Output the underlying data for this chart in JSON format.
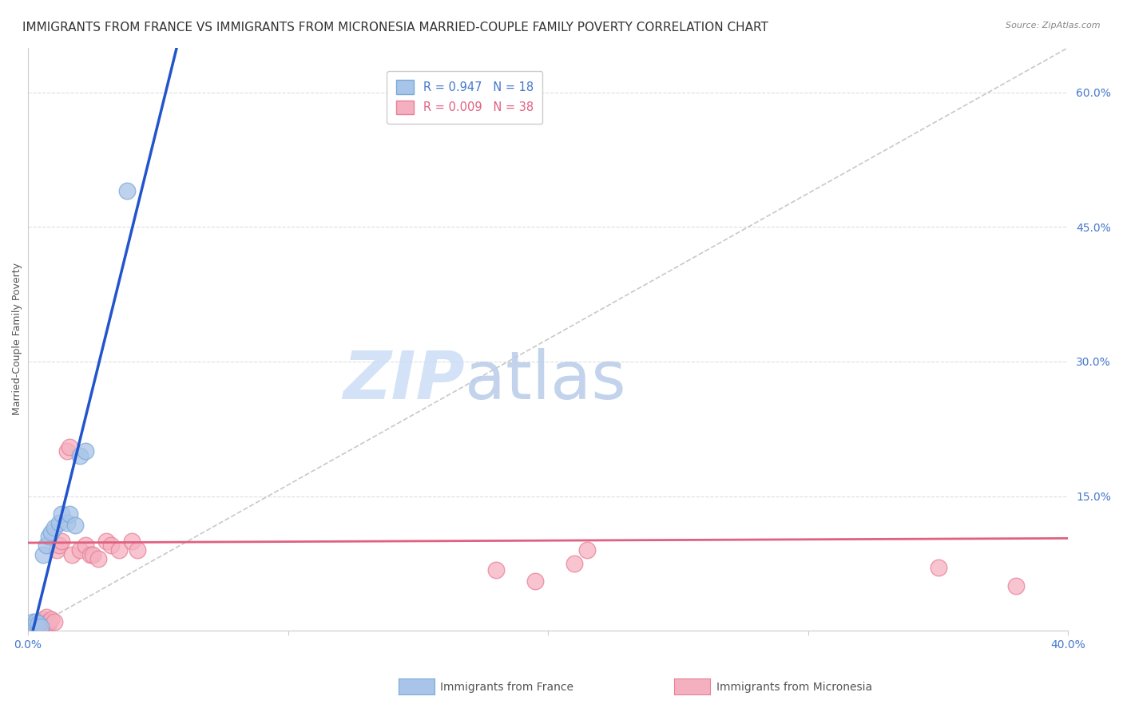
{
  "title": "IMMIGRANTS FROM FRANCE VS IMMIGRANTS FROM MICRONESIA MARRIED-COUPLE FAMILY POVERTY CORRELATION CHART",
  "source": "Source: ZipAtlas.com",
  "ylabel": "Married-Couple Family Poverty",
  "xlim": [
    0.0,
    0.4
  ],
  "ylim": [
    0.0,
    0.65
  ],
  "france_color": "#a8c4e8",
  "france_edge_color": "#7aaad8",
  "micronesia_color": "#f5b0c0",
  "micronesia_edge_color": "#e88098",
  "france_line_color": "#2255cc",
  "micronesia_line_color": "#e06080",
  "legend_label_france": "R = 0.947   N = 18",
  "legend_label_micronesia": "R = 0.009   N = 38",
  "watermark_zip": "ZIP",
  "watermark_atlas": "atlas",
  "bg_color": "#ffffff",
  "grid_color": "#dddddd",
  "axis_label_color": "#4477cc",
  "title_color": "#333333",
  "title_fontsize": 11,
  "axis_fontsize": 10,
  "france_x": [
    0.001,
    0.002,
    0.003,
    0.004,
    0.005,
    0.006,
    0.007,
    0.008,
    0.009,
    0.01,
    0.012,
    0.013,
    0.015,
    0.016,
    0.018,
    0.02,
    0.022,
    0.038
  ],
  "france_y": [
    0.005,
    0.01,
    0.01,
    0.008,
    0.005,
    0.085,
    0.095,
    0.105,
    0.11,
    0.115,
    0.12,
    0.13,
    0.12,
    0.13,
    0.118,
    0.195,
    0.2,
    0.49
  ],
  "micronesia_x": [
    0.001,
    0.001,
    0.002,
    0.002,
    0.003,
    0.003,
    0.004,
    0.004,
    0.005,
    0.005,
    0.006,
    0.007,
    0.008,
    0.008,
    0.009,
    0.01,
    0.011,
    0.012,
    0.013,
    0.015,
    0.016,
    0.017,
    0.02,
    0.022,
    0.024,
    0.025,
    0.027,
    0.03,
    0.032,
    0.035,
    0.04,
    0.042,
    0.18,
    0.195,
    0.21,
    0.215,
    0.35,
    0.38
  ],
  "micronesia_y": [
    0.0,
    0.002,
    0.0,
    0.005,
    0.003,
    0.01,
    0.005,
    0.008,
    0.0,
    0.01,
    0.013,
    0.015,
    0.008,
    0.01,
    0.013,
    0.01,
    0.09,
    0.095,
    0.1,
    0.2,
    0.205,
    0.085,
    0.09,
    0.095,
    0.085,
    0.085,
    0.08,
    0.1,
    0.095,
    0.09,
    0.1,
    0.09,
    0.068,
    0.055,
    0.075,
    0.09,
    0.07,
    0.05
  ]
}
